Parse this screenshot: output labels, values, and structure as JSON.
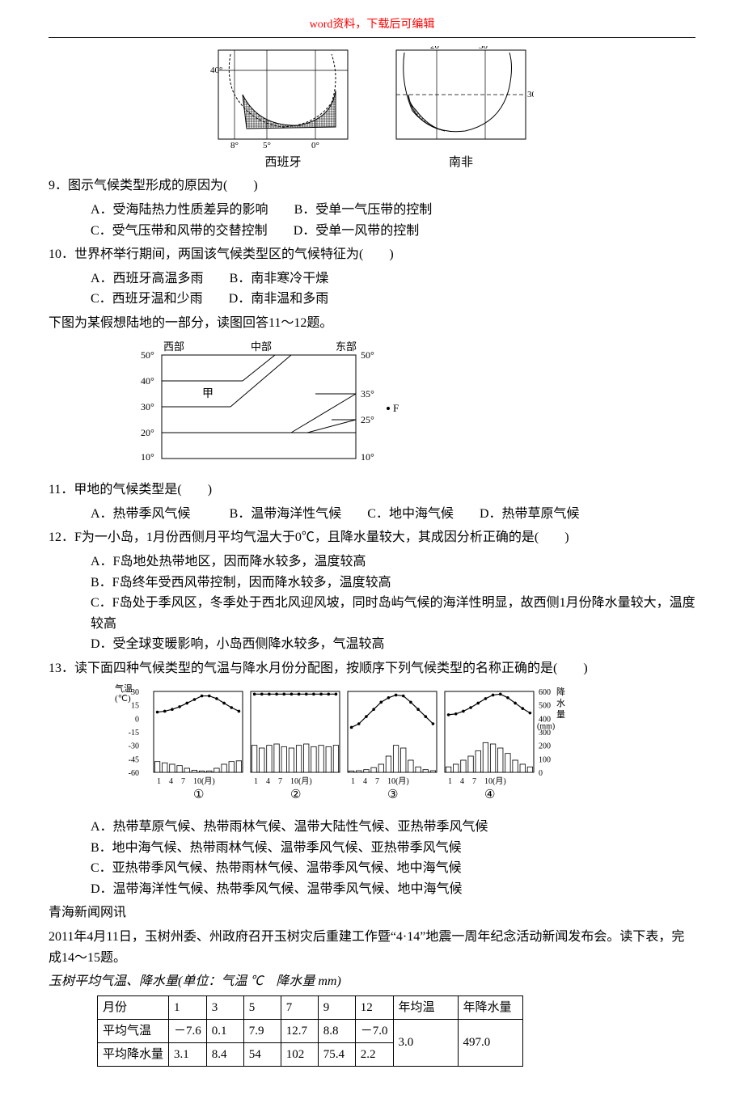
{
  "header": {
    "notice": "word资料，下载后可编辑"
  },
  "maps": {
    "spain": {
      "label": "西班牙",
      "gridlines": {
        "lon": [
          "8°",
          "5°",
          "0°"
        ],
        "lat": [
          "40°"
        ]
      },
      "stroke": "#000000",
      "hatch": "#000000",
      "bg": "#ffffff"
    },
    "sa": {
      "label": "南非",
      "gridlines": {
        "lon": [
          "20°",
          "30°"
        ],
        "lat": [
          "30°"
        ]
      },
      "stroke": "#000000",
      "hatch": "#000000",
      "bg": "#ffffff"
    }
  },
  "q9": {
    "stem": "9．图示气候类型形成的原因为(　　)",
    "A": "A．受海陆热力性质差异的影响",
    "B": "B．受单一气压带的控制",
    "C": "C．受气压带和风带的交替控制",
    "D": "D．受单一风带的控制"
  },
  "q10": {
    "stem": "10．世界杯举行期间，两国该气候类型区的气候特征为(　　)",
    "A": "A．西班牙高温多雨",
    "B": "B．南非寒冷干燥",
    "C": "C．西班牙温和少雨",
    "D": "D．南非温和多雨"
  },
  "intro11": "下图为某假想陆地的一部分，读图回答11～12题。",
  "landDiagram": {
    "leftLabel": "西部",
    "midLabel": "中部",
    "rightLabel": "东部",
    "leftTicks": [
      "50°",
      "40°",
      "30°",
      "20°",
      "10°"
    ],
    "rightTicks": [
      "50°",
      "35°",
      "25°",
      "10°"
    ],
    "jia": "甲",
    "F": "F",
    "stroke": "#000000",
    "bg": "#ffffff",
    "fontsize": 12
  },
  "q11": {
    "stem": "11．甲地的气候类型是(　　)",
    "A": "A．热带季风气候",
    "B": "B．温带海洋性气候",
    "C": "C．地中海气候",
    "D": "D．热带草原气候"
  },
  "q12": {
    "stem": "12．F为一小岛，1月份西侧月平均气温大于0℃，且降水量较大，其成因分析正确的是(　　)",
    "A": "A．F岛地处热带地区，因而降水较多，温度较高",
    "B": "B．F岛终年受西风带控制，因而降水较多，温度较高",
    "C": "C．F岛处于季风区，冬季处于西北风迎风坡，同时岛屿气候的海洋性明显，故西侧1月份降水量较大，温度较高",
    "D": "D．受全球变暖影响，小岛西侧降水较多，气温较高"
  },
  "q13": {
    "stem": "13．读下面四种气候类型的气温与降水月份分配图，按顺序下列气候类型的名称正确的是(　　)",
    "A": "A．热带草原气候、热带雨林气候、温带大陆性气候、亚热带季风气候",
    "B": "B．地中海气候、热带雨林气候、温带季风气候、亚热带季风气候",
    "C": "C．亚热带季风气候、热带雨林气候、温带季风气候、地中海气候",
    "D": "D．温带海洋性气候、热带季风气候、温带季风气候、地中海气候"
  },
  "climate": {
    "tempAxis": {
      "label": "气温(℃)",
      "ticks": [
        "30",
        "15",
        "0",
        "-15",
        "-30",
        "-45",
        "-60"
      ]
    },
    "precAxis": {
      "label": "降水量(mm)",
      "ticks": [
        "600",
        "500",
        "400",
        "300",
        "200",
        "100",
        "0"
      ]
    },
    "xLabel": "1　4　7　10(月)",
    "circled": [
      "①",
      "②",
      "③",
      "④"
    ],
    "panels": [
      {
        "temp": [
          7,
          8,
          10,
          13,
          17,
          21,
          25,
          25,
          22,
          17,
          12,
          8
        ],
        "prec": [
          80,
          70,
          60,
          50,
          30,
          15,
          10,
          10,
          30,
          60,
          80,
          85
        ]
      },
      {
        "temp": [
          27,
          27,
          27,
          27,
          27,
          27,
          27,
          27,
          27,
          27,
          27,
          27
        ],
        "prec": [
          200,
          180,
          200,
          210,
          190,
          180,
          200,
          210,
          190,
          200,
          190,
          200
        ]
      },
      {
        "temp": [
          -10,
          -6,
          2,
          10,
          18,
          23,
          26,
          25,
          18,
          10,
          2,
          -6
        ],
        "prec": [
          10,
          12,
          20,
          35,
          60,
          120,
          200,
          180,
          90,
          40,
          20,
          12
        ]
      },
      {
        "temp": [
          4,
          5,
          8,
          12,
          17,
          22,
          26,
          27,
          23,
          17,
          11,
          6
        ],
        "prec": [
          40,
          60,
          90,
          120,
          160,
          220,
          210,
          180,
          140,
          90,
          60,
          40
        ]
      }
    ],
    "barColor": "#000000",
    "lineColor": "#000000",
    "bg": "#ffffff"
  },
  "newsLine": "青海新闻网讯",
  "newsBody": "2011年4月11日，玉树州委、州政府召开玉树灾后重建工作暨“4·14”地震一周年纪念活动新闻发布会。读下表，完成14～15题。",
  "tableTitle": "玉树平均气温、降水量(单位：气温 ℃　降水量 mm)",
  "table": {
    "cols": [
      "月份",
      "1",
      "3",
      "5",
      "7",
      "9",
      "12",
      "年均温",
      "年降水量"
    ],
    "rowT": [
      "平均气温",
      "－7.6",
      "0.1",
      "7.9",
      "12.7",
      "8.8",
      "－7.0"
    ],
    "rowP": [
      "平均降水量",
      "3.1",
      "8.4",
      "54",
      "102",
      "75.4",
      "2.2"
    ],
    "annualT": "3.0",
    "annualP": "497.0",
    "border": "#000000",
    "fontsize": 15
  }
}
